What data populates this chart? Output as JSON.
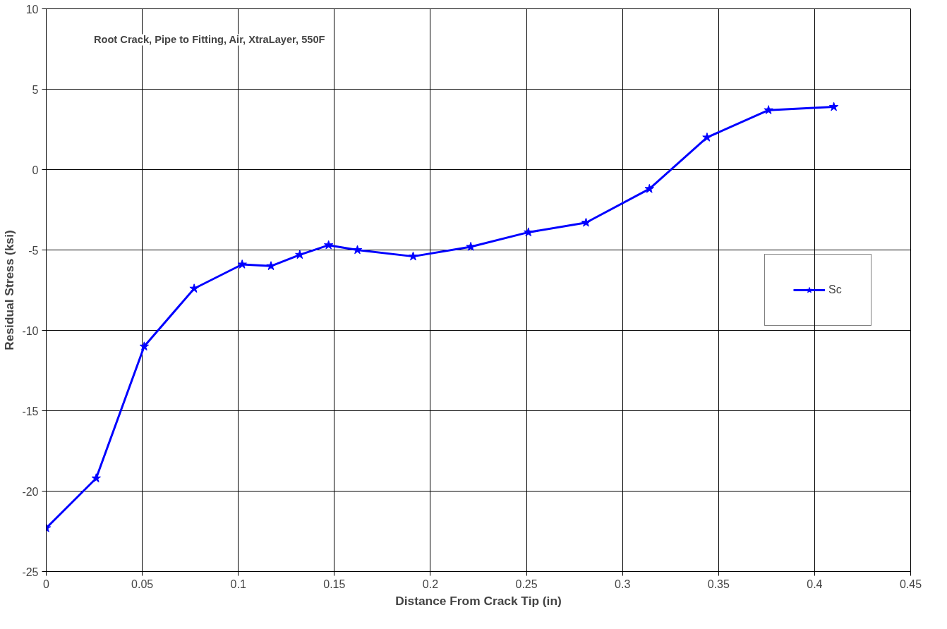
{
  "chart_data": {
    "type": "line",
    "title": "Root Crack, Pipe to Fitting, Air, XtraLayer, 550F",
    "xlabel": "Distance From Crack Tip (in)",
    "ylabel": "Residual Stress (ksi)",
    "x": [
      0,
      0.026,
      0.051,
      0.077,
      0.102,
      0.117,
      0.132,
      0.147,
      0.162,
      0.191,
      0.221,
      0.251,
      0.281,
      0.314,
      0.344,
      0.376,
      0.41
    ],
    "series": [
      {
        "name": "Sc",
        "color": "#0000ff",
        "values": [
          -22.3,
          -19.2,
          -11.0,
          -7.4,
          -5.9,
          -6.0,
          -5.3,
          -4.7,
          -5.0,
          -5.4,
          -4.8,
          -3.9,
          -3.3,
          -1.2,
          2.0,
          3.7,
          3.9
        ]
      }
    ],
    "xlim": [
      0,
      0.45
    ],
    "xticks": [
      0,
      0.05,
      0.1,
      0.15,
      0.2,
      0.25,
      0.3,
      0.35,
      0.4,
      0.45
    ],
    "ylim": [
      -25,
      10
    ],
    "yticks": [
      -25,
      -20,
      -15,
      -10,
      -5,
      0,
      5,
      10
    ],
    "grid": true,
    "legend": "right",
    "marker": "star",
    "line_style": "solid"
  }
}
